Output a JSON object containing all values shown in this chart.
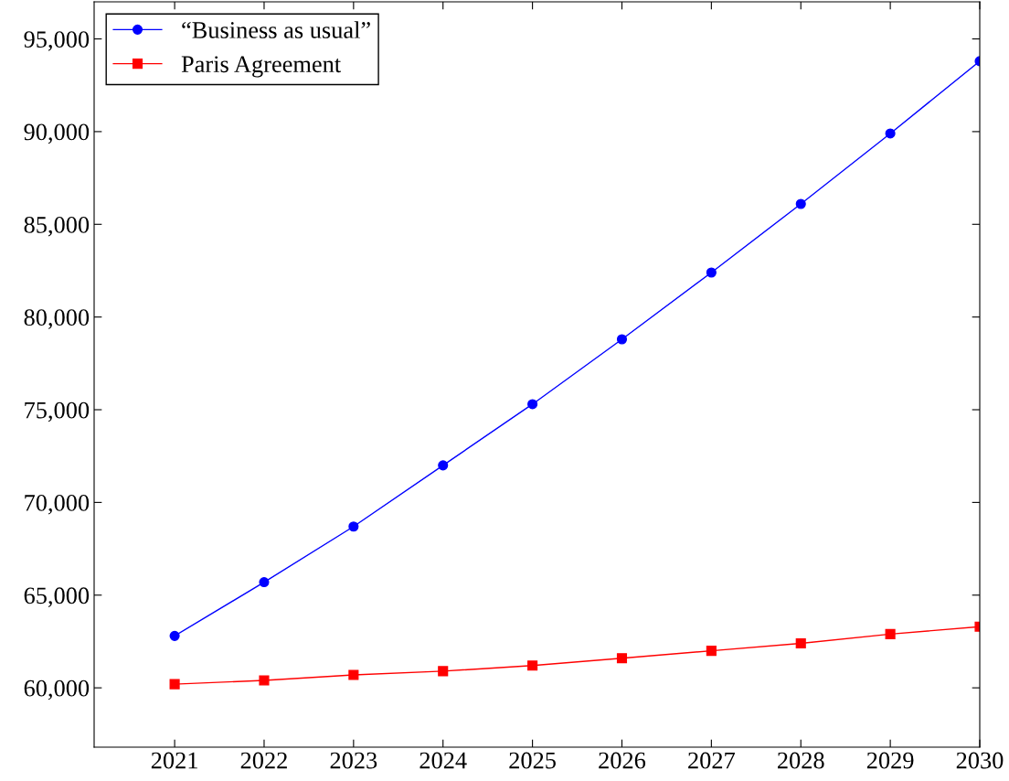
{
  "chart_data": {
    "type": "line",
    "x": [
      2021,
      2022,
      2023,
      2024,
      2025,
      2026,
      2027,
      2028,
      2029,
      2030
    ],
    "series": [
      {
        "name": "“Business as usual”",
        "color": "#0000ff",
        "marker": "circle",
        "values": [
          62800,
          65700,
          68700,
          72000,
          75300,
          78800,
          82400,
          86100,
          89900,
          93800
        ]
      },
      {
        "name": "Paris Agreement",
        "color": "#ff0000",
        "marker": "square",
        "values": [
          60200,
          60400,
          60700,
          60900,
          61200,
          61600,
          62000,
          62400,
          62900,
          63300
        ]
      }
    ],
    "xlim": [
      2020.1,
      2030
    ],
    "xticks": [
      {
        "value": 2021,
        "label": "2021"
      },
      {
        "value": 2022,
        "label": "2022"
      },
      {
        "value": 2023,
        "label": "2023"
      },
      {
        "value": 2024,
        "label": "2024"
      },
      {
        "value": 2025,
        "label": "2025"
      },
      {
        "value": 2026,
        "label": "2026"
      },
      {
        "value": 2027,
        "label": "2027"
      },
      {
        "value": 2028,
        "label": "2028"
      },
      {
        "value": 2029,
        "label": "2029"
      },
      {
        "value": 2030,
        "label": "2030"
      }
    ],
    "ylim": [
      56800,
      97000
    ],
    "yticks": [
      {
        "value": 60000,
        "label": "60,000"
      },
      {
        "value": 65000,
        "label": "65,000"
      },
      {
        "value": 70000,
        "label": "70,000"
      },
      {
        "value": 75000,
        "label": "75,000"
      },
      {
        "value": 80000,
        "label": "80,000"
      },
      {
        "value": 85000,
        "label": "85,000"
      },
      {
        "value": 90000,
        "label": "90,000"
      },
      {
        "value": 95000,
        "label": "95,000"
      }
    ],
    "legend": "top left",
    "grid": false,
    "line_style": "solid"
  }
}
